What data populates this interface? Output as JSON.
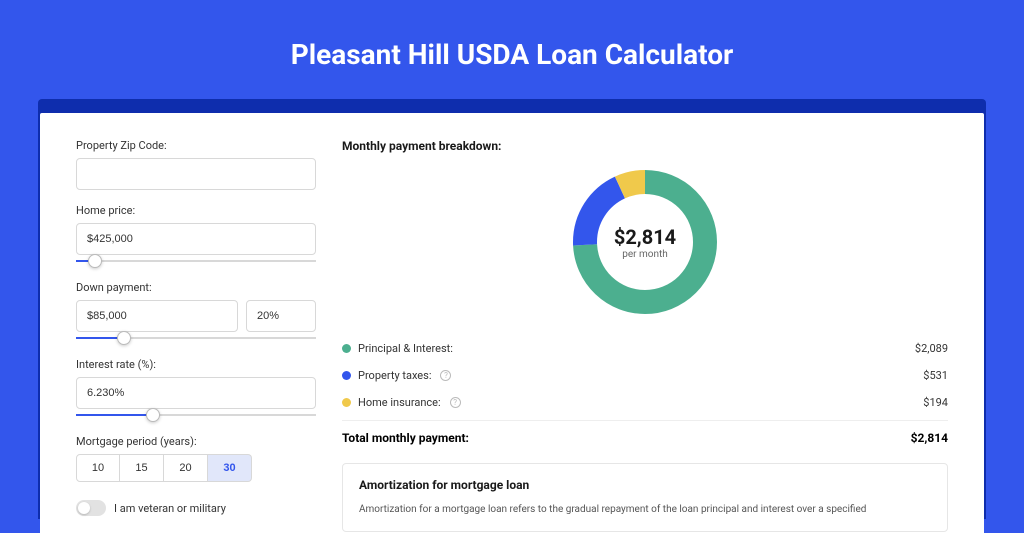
{
  "page_title": "Pleasant Hill USDA Loan Calculator",
  "colors": {
    "page_bg": "#3356ec",
    "shadow_bg": "#0e2dad",
    "card_bg": "#ffffff",
    "accent": "#3356ec",
    "donut_principal": "#4caf8f",
    "donut_taxes": "#3356ec",
    "donut_insurance": "#f0c94b"
  },
  "form": {
    "zip": {
      "label": "Property Zip Code:",
      "value": ""
    },
    "home_price": {
      "label": "Home price:",
      "value": "$425,000",
      "slider_pct": 8
    },
    "down_payment": {
      "label": "Down payment:",
      "value": "$85,000",
      "pct_value": "20%",
      "slider_pct": 20
    },
    "interest_rate": {
      "label": "Interest rate (%):",
      "value": "6.230%",
      "slider_pct": 32
    },
    "period": {
      "label": "Mortgage period (years):",
      "options": [
        "10",
        "15",
        "20",
        "30"
      ],
      "selected": "30"
    },
    "veteran": {
      "label": "I am veteran or military",
      "checked": false
    }
  },
  "breakdown": {
    "title": "Monthly payment breakdown:",
    "donut": {
      "amount": "$2,814",
      "subtitle": "per month",
      "slices": [
        {
          "key": "principal",
          "pct": 74.2,
          "color": "#4caf8f"
        },
        {
          "key": "taxes",
          "pct": 18.9,
          "color": "#3356ec"
        },
        {
          "key": "insurance",
          "pct": 6.9,
          "color": "#f0c94b"
        }
      ],
      "stroke_width": 24,
      "radius": 60
    },
    "items": [
      {
        "dot": "#4caf8f",
        "label": "Principal & Interest:",
        "info": false,
        "value": "$2,089"
      },
      {
        "dot": "#3356ec",
        "label": "Property taxes:",
        "info": true,
        "value": "$531"
      },
      {
        "dot": "#f0c94b",
        "label": "Home insurance:",
        "info": true,
        "value": "$194"
      }
    ],
    "total": {
      "label": "Total monthly payment:",
      "value": "$2,814"
    }
  },
  "amort": {
    "title": "Amortization for mortgage loan",
    "text": "Amortization for a mortgage loan refers to the gradual repayment of the loan principal and interest over a specified"
  }
}
